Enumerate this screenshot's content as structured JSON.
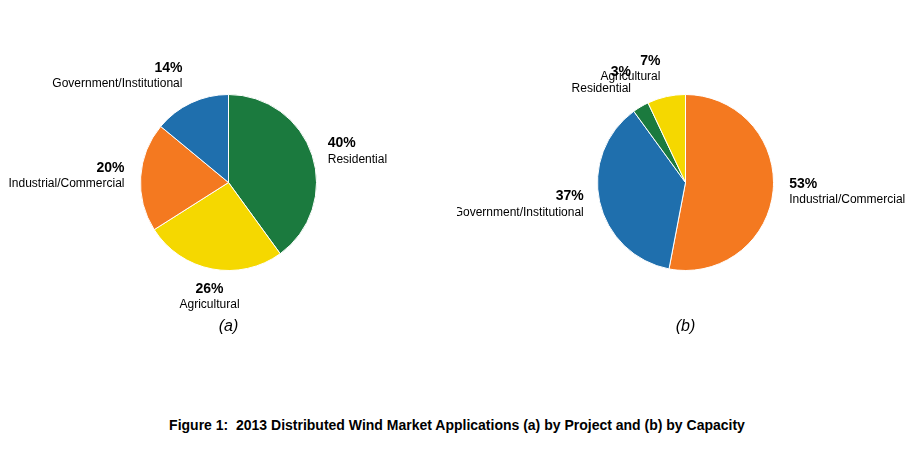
{
  "caption": "Figure 1:  2013 Distributed Wind Market Applications (a) by Project and (b) by Capacity",
  "chart_data": [
    {
      "type": "pie",
      "subtitle": "(a)",
      "categories": [
        "Residential",
        "Agricultural",
        "Industrial/Commercial",
        "Government/Institutional"
      ],
      "values": [
        40,
        26,
        20,
        14
      ],
      "value_labels": [
        "40%",
        "26%",
        "20%",
        "14%"
      ],
      "colors": [
        "#1b7a3e",
        "#f5d800",
        "#f47920",
        "#1f6fad"
      ],
      "data_labels": true
    },
    {
      "type": "pie",
      "subtitle": "(b)",
      "categories": [
        "Industrial/Commercial",
        "Government/Institutional",
        "Residential",
        "Agricultural"
      ],
      "values": [
        53,
        37,
        3,
        7
      ],
      "value_labels": [
        "53%",
        "37%",
        "3%",
        "7%"
      ],
      "colors": [
        "#f47920",
        "#1f6fad",
        "#1b7a3e",
        "#f5d800"
      ],
      "data_labels": true
    }
  ]
}
